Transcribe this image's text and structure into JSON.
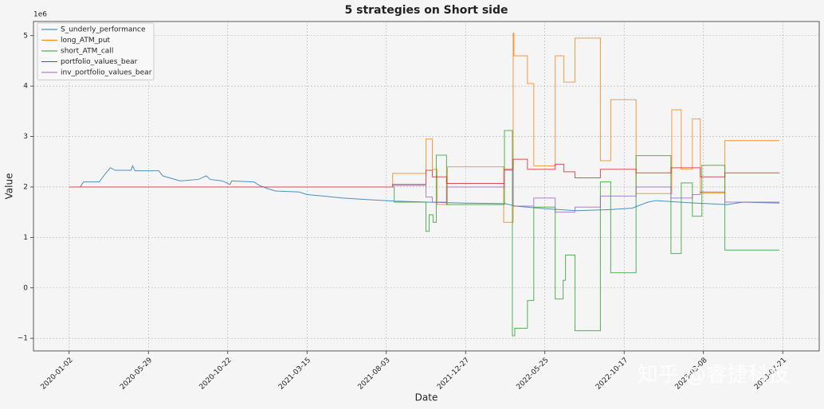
{
  "chart_data": {
    "type": "line",
    "title": "5 strategies on Short side",
    "xlabel": "Date",
    "ylabel": "Value",
    "y_offset_text": "1e6",
    "watermark": "知乎 @睿捷科技",
    "legend": "upper left",
    "grid": true,
    "xlim": [
      -45,
      946
    ],
    "ylim": [
      -1.25,
      5.28
    ],
    "xticks": [
      {
        "value": 0,
        "label": "2020-01-02"
      },
      {
        "value": 100,
        "label": "2020-05-29"
      },
      {
        "value": 200,
        "label": "2020-10-22"
      },
      {
        "value": 300,
        "label": "2021-03-15"
      },
      {
        "value": 400,
        "label": "2021-08-03"
      },
      {
        "value": 500,
        "label": "2021-12-27"
      },
      {
        "value": 600,
        "label": "2022-05-25"
      },
      {
        "value": 700,
        "label": "2022-10-17"
      },
      {
        "value": 800,
        "label": "2023-03-08"
      },
      {
        "value": 900,
        "label": "2023-07-21"
      }
    ],
    "yticks": [
      {
        "value": -1,
        "label": "−1"
      },
      0,
      1,
      2,
      3,
      4,
      5
    ],
    "series": [
      {
        "name": "S_underly_performance",
        "color": "#1f77b4",
        "drawstyle": "default",
        "x": [
          14,
          18,
          38,
          45,
          52,
          58,
          78,
          80,
          83,
          113,
          118,
          140,
          163,
          173,
          178,
          193,
          203,
          205,
          233,
          240,
          250,
          260,
          290,
          300,
          320,
          345,
          375,
          410,
          450,
          500,
          550,
          563,
          600,
          640,
          680,
          710,
          730,
          740,
          790,
          830,
          850,
          896
        ],
        "values": [
          2.0,
          2.1,
          2.1,
          2.25,
          2.38,
          2.33,
          2.33,
          2.42,
          2.32,
          2.32,
          2.22,
          2.12,
          2.15,
          2.22,
          2.15,
          2.12,
          2.05,
          2.12,
          2.1,
          2.03,
          1.97,
          1.92,
          1.9,
          1.85,
          1.82,
          1.78,
          1.75,
          1.72,
          1.7,
          1.68,
          1.67,
          1.62,
          1.57,
          1.53,
          1.55,
          1.58,
          1.7,
          1.73,
          1.68,
          1.65,
          1.7,
          1.68
        ]
      },
      {
        "name": " long_ATM_put",
        "color": "#ff7f0e",
        "drawstyle": "steps-post",
        "x": [
          407,
          408,
          450,
          458,
          464,
          477,
          548,
          560,
          561,
          578,
          586,
          613,
          624,
          638,
          670,
          683,
          715,
          760,
          772,
          786,
          796,
          827,
          896
        ],
        "values": [
          2.0,
          2.27,
          2.95,
          2.35,
          1.65,
          2.4,
          1.3,
          5.05,
          4.6,
          4.05,
          2.42,
          4.6,
          4.08,
          4.95,
          2.52,
          3.73,
          1.87,
          3.53,
          2.35,
          3.35,
          1.88,
          2.92,
          2.92
        ]
      },
      {
        "name": "short_ATM_call",
        "color": "#2ca02c",
        "drawstyle": "steps-post",
        "x": [
          407,
          410,
          450,
          454,
          459,
          463,
          476,
          549,
          559,
          562,
          578,
          586,
          613,
          623,
          626,
          638,
          670,
          683,
          715,
          759,
          772,
          786,
          798,
          827,
          896
        ],
        "values": [
          2.0,
          1.7,
          1.12,
          1.45,
          1.3,
          2.63,
          1.65,
          3.12,
          -0.95,
          -0.8,
          -0.25,
          1.6,
          -0.22,
          0.15,
          0.65,
          -0.85,
          2.1,
          0.3,
          2.62,
          0.68,
          2.08,
          1.42,
          2.43,
          0.75,
          0.75
        ]
      },
      {
        "name": "portfolio_values_bear",
        "color": "#d62728",
        "drawstyle": "steps-post",
        "x": [
          0,
          408,
          450,
          458,
          476,
          549,
          560,
          578,
          613,
          624,
          638,
          670,
          715,
          759,
          796,
          827,
          896
        ],
        "values": [
          2.0,
          2.05,
          2.33,
          2.2,
          2.07,
          2.35,
          2.55,
          2.35,
          2.45,
          2.3,
          2.18,
          2.35,
          2.28,
          2.38,
          2.2,
          2.28,
          2.28
        ]
      },
      {
        "name": "inv_portfolio_values_bear",
        "color": "#9467bd",
        "drawstyle": "steps-post",
        "x": [
          407,
          408,
          450,
          458,
          476,
          549,
          560,
          586,
          613,
          638,
          670,
          715,
          759,
          786,
          796,
          827,
          896
        ],
        "values": [
          2.0,
          2.03,
          1.8,
          1.7,
          2.0,
          2.33,
          1.62,
          1.78,
          1.5,
          1.6,
          1.82,
          2.0,
          1.78,
          1.85,
          1.9,
          1.7,
          1.7
        ]
      }
    ]
  }
}
